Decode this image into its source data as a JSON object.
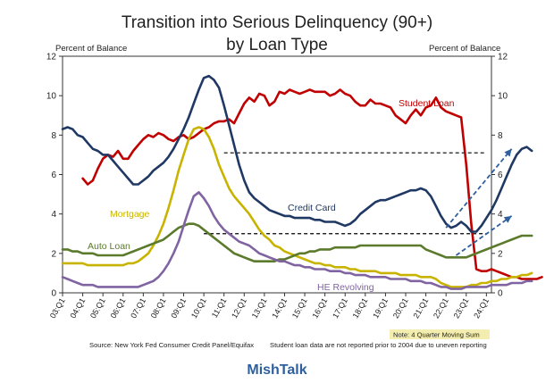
{
  "chart_data": {
    "type": "line",
    "title_line1": "Transition into Serious Delinquency (90+)",
    "title_line2": "by Loan Type",
    "ylabel_left": "Percent of Balance",
    "ylabel_right": "Percent of Balance",
    "ylim": [
      0,
      12
    ],
    "yticks": [
      0,
      2,
      4,
      6,
      8,
      10,
      12
    ],
    "x_tick_labels": [
      "03:Q1",
      "04:Q1",
      "05:Q1",
      "06:Q1",
      "07:Q1",
      "08:Q1",
      "09:Q1",
      "10:Q1",
      "11:Q1",
      "12:Q1",
      "13:Q1",
      "14:Q1",
      "15:Q1",
      "16:Q1",
      "17:Q1",
      "18:Q1",
      "19:Q1",
      "20:Q1",
      "21:Q1",
      "22:Q1",
      "23:Q1",
      "24:Q1"
    ],
    "x_start_year": 2003,
    "x_end": "24:Q2",
    "series": [
      {
        "name": "Student Loan",
        "color": "#c00000",
        "start_quarter_index": 4,
        "values": [
          5.8,
          5.5,
          5.7,
          6.3,
          6.8,
          7.0,
          6.9,
          7.2,
          6.8,
          6.8,
          7.2,
          7.5,
          7.8,
          8.0,
          7.9,
          8.1,
          8.0,
          7.8,
          7.7,
          7.9,
          8.0,
          7.8,
          7.9,
          8.1,
          8.3,
          8.4,
          8.6,
          8.7,
          8.7,
          8.8,
          8.6,
          9.1,
          9.6,
          9.9,
          9.7,
          10.1,
          10.0,
          9.5,
          9.7,
          10.2,
          10.1,
          10.3,
          10.2,
          10.1,
          10.2,
          10.3,
          10.2,
          10.2,
          10.2,
          10.0,
          10.1,
          10.3,
          10.1,
          10.0,
          9.7,
          9.5,
          9.5,
          9.8,
          9.6,
          9.6,
          9.5,
          9.4,
          9.0,
          8.8,
          8.6,
          9.0,
          9.3,
          9.0,
          9.4,
          9.5,
          9.9,
          9.4,
          9.2,
          9.1,
          9.0,
          8.9,
          6.5,
          3.5,
          1.2,
          1.1,
          1.1,
          1.2,
          1.1,
          1.0,
          0.9,
          0.8,
          0.8,
          0.7,
          0.7,
          0.7,
          0.7,
          0.8
        ]
      },
      {
        "name": "Credit Card",
        "color": "#1f3864",
        "start_quarter_index": 0,
        "values": [
          8.3,
          8.4,
          8.3,
          8.0,
          7.9,
          7.6,
          7.3,
          7.2,
          7.0,
          7.0,
          6.7,
          6.4,
          6.1,
          5.8,
          5.5,
          5.5,
          5.7,
          5.9,
          6.2,
          6.4,
          6.6,
          6.9,
          7.3,
          7.8,
          8.3,
          8.9,
          9.6,
          10.3,
          10.9,
          11.0,
          10.8,
          10.4,
          9.5,
          8.5,
          7.5,
          6.5,
          5.7,
          5.1,
          4.8,
          4.6,
          4.4,
          4.2,
          4.1,
          4.0,
          3.9,
          3.9,
          3.8,
          3.8,
          3.8,
          3.8,
          3.7,
          3.7,
          3.6,
          3.6,
          3.6,
          3.5,
          3.4,
          3.5,
          3.7,
          4.0,
          4.2,
          4.4,
          4.6,
          4.7,
          4.7,
          4.8,
          4.9,
          5.0,
          5.1,
          5.2,
          5.2,
          5.3,
          5.2,
          4.9,
          4.4,
          3.9,
          3.5,
          3.3,
          3.4,
          3.6,
          3.4,
          3.1,
          3.1,
          3.4,
          3.8,
          4.2,
          4.7,
          5.3,
          5.9,
          6.5,
          7.0,
          7.3,
          7.4,
          7.2
        ]
      },
      {
        "name": "Mortgage",
        "color": "#c8b400",
        "start_quarter_index": 0,
        "values": [
          1.5,
          1.5,
          1.5,
          1.5,
          1.5,
          1.4,
          1.4,
          1.4,
          1.4,
          1.4,
          1.4,
          1.4,
          1.4,
          1.5,
          1.5,
          1.6,
          1.8,
          2.0,
          2.4,
          2.9,
          3.5,
          4.3,
          5.2,
          6.2,
          7.0,
          7.8,
          8.3,
          8.4,
          8.3,
          7.9,
          7.3,
          6.5,
          5.9,
          5.3,
          4.9,
          4.6,
          4.3,
          4.0,
          3.6,
          3.2,
          2.9,
          2.7,
          2.4,
          2.3,
          2.1,
          2.0,
          1.9,
          1.8,
          1.7,
          1.6,
          1.5,
          1.5,
          1.4,
          1.4,
          1.3,
          1.3,
          1.3,
          1.2,
          1.2,
          1.1,
          1.1,
          1.1,
          1.1,
          1.0,
          1.0,
          1.0,
          1.0,
          0.9,
          0.9,
          0.9,
          0.9,
          0.8,
          0.8,
          0.8,
          0.7,
          0.5,
          0.4,
          0.3,
          0.3,
          0.3,
          0.3,
          0.4,
          0.4,
          0.5,
          0.5,
          0.6,
          0.6,
          0.7,
          0.7,
          0.8,
          0.8,
          0.9,
          0.9,
          1.0
        ]
      },
      {
        "name": "Auto Loan",
        "color": "#5b7a2c",
        "start_quarter_index": 0,
        "values": [
          2.2,
          2.2,
          2.1,
          2.1,
          2.0,
          2.0,
          2.0,
          1.9,
          1.9,
          1.9,
          1.9,
          1.9,
          1.9,
          2.0,
          2.1,
          2.2,
          2.3,
          2.4,
          2.5,
          2.6,
          2.7,
          2.9,
          3.1,
          3.3,
          3.4,
          3.5,
          3.5,
          3.4,
          3.2,
          3.0,
          2.8,
          2.6,
          2.4,
          2.2,
          2.0,
          1.9,
          1.8,
          1.7,
          1.6,
          1.6,
          1.6,
          1.6,
          1.6,
          1.7,
          1.7,
          1.8,
          1.9,
          2.0,
          2.0,
          2.1,
          2.1,
          2.2,
          2.2,
          2.2,
          2.3,
          2.3,
          2.3,
          2.3,
          2.3,
          2.4,
          2.4,
          2.4,
          2.4,
          2.4,
          2.4,
          2.4,
          2.4,
          2.4,
          2.4,
          2.4,
          2.4,
          2.4,
          2.2,
          2.1,
          2.0,
          1.9,
          1.8,
          1.8,
          1.8,
          1.8,
          1.8,
          1.9,
          2.0,
          2.1,
          2.2,
          2.3,
          2.4,
          2.5,
          2.6,
          2.7,
          2.8,
          2.9,
          2.9,
          2.9
        ]
      },
      {
        "name": "HE Revolving",
        "color": "#8064a2",
        "start_quarter_index": 0,
        "values": [
          0.8,
          0.7,
          0.6,
          0.5,
          0.4,
          0.4,
          0.4,
          0.3,
          0.3,
          0.3,
          0.3,
          0.3,
          0.3,
          0.3,
          0.3,
          0.3,
          0.4,
          0.5,
          0.6,
          0.8,
          1.1,
          1.5,
          2.0,
          2.6,
          3.4,
          4.2,
          4.9,
          5.1,
          4.8,
          4.4,
          3.9,
          3.5,
          3.2,
          3.0,
          2.8,
          2.6,
          2.5,
          2.4,
          2.2,
          2.0,
          1.9,
          1.8,
          1.7,
          1.6,
          1.6,
          1.5,
          1.4,
          1.4,
          1.3,
          1.3,
          1.2,
          1.2,
          1.2,
          1.1,
          1.1,
          1.1,
          1.0,
          1.0,
          0.9,
          0.9,
          0.9,
          0.8,
          0.8,
          0.8,
          0.8,
          0.7,
          0.7,
          0.7,
          0.7,
          0.6,
          0.6,
          0.6,
          0.5,
          0.5,
          0.4,
          0.3,
          0.3,
          0.2,
          0.2,
          0.2,
          0.3,
          0.3,
          0.3,
          0.3,
          0.3,
          0.4,
          0.4,
          0.4,
          0.4,
          0.5,
          0.5,
          0.5,
          0.6,
          0.6
        ]
      }
    ],
    "reference_lines": [
      {
        "y": 7.1,
        "from_quarter_index": 32,
        "style": "dashed",
        "color": "#000000"
      },
      {
        "y": 3.0,
        "from_quarter_index": 28,
        "style": "dashed",
        "color": "#000000"
      }
    ],
    "trend_arrows": [
      {
        "from": [
          76,
          3.3
        ],
        "to": [
          89,
          7.3
        ],
        "color": "#2e5f9e"
      },
      {
        "from": [
          78,
          1.9
        ],
        "to": [
          89,
          3.9
        ],
        "color": "#2e5f9e"
      }
    ],
    "annotations": [
      {
        "text": "Student Loan",
        "series": "Student Loan"
      },
      {
        "text": "Credit Card",
        "series": "Credit Card"
      },
      {
        "text": "Mortgage",
        "series": "Mortgage"
      },
      {
        "text": "Auto Loan",
        "series": "Auto Loan"
      },
      {
        "text": "HE Revolving",
        "series": "HE Revolving"
      }
    ],
    "note": "Note: 4 Quarter Moving Sum",
    "source": "Source: New York Fed Consumer Credit Panel/Equifax",
    "footnote": "Student loan data are not reported prior to 2004 due to uneven reporting",
    "brand": "MishTalk"
  },
  "colors": {
    "brand": "#2e5f9e",
    "note_bg": "#f3eeb0",
    "arrow": "#2e5f9e"
  }
}
